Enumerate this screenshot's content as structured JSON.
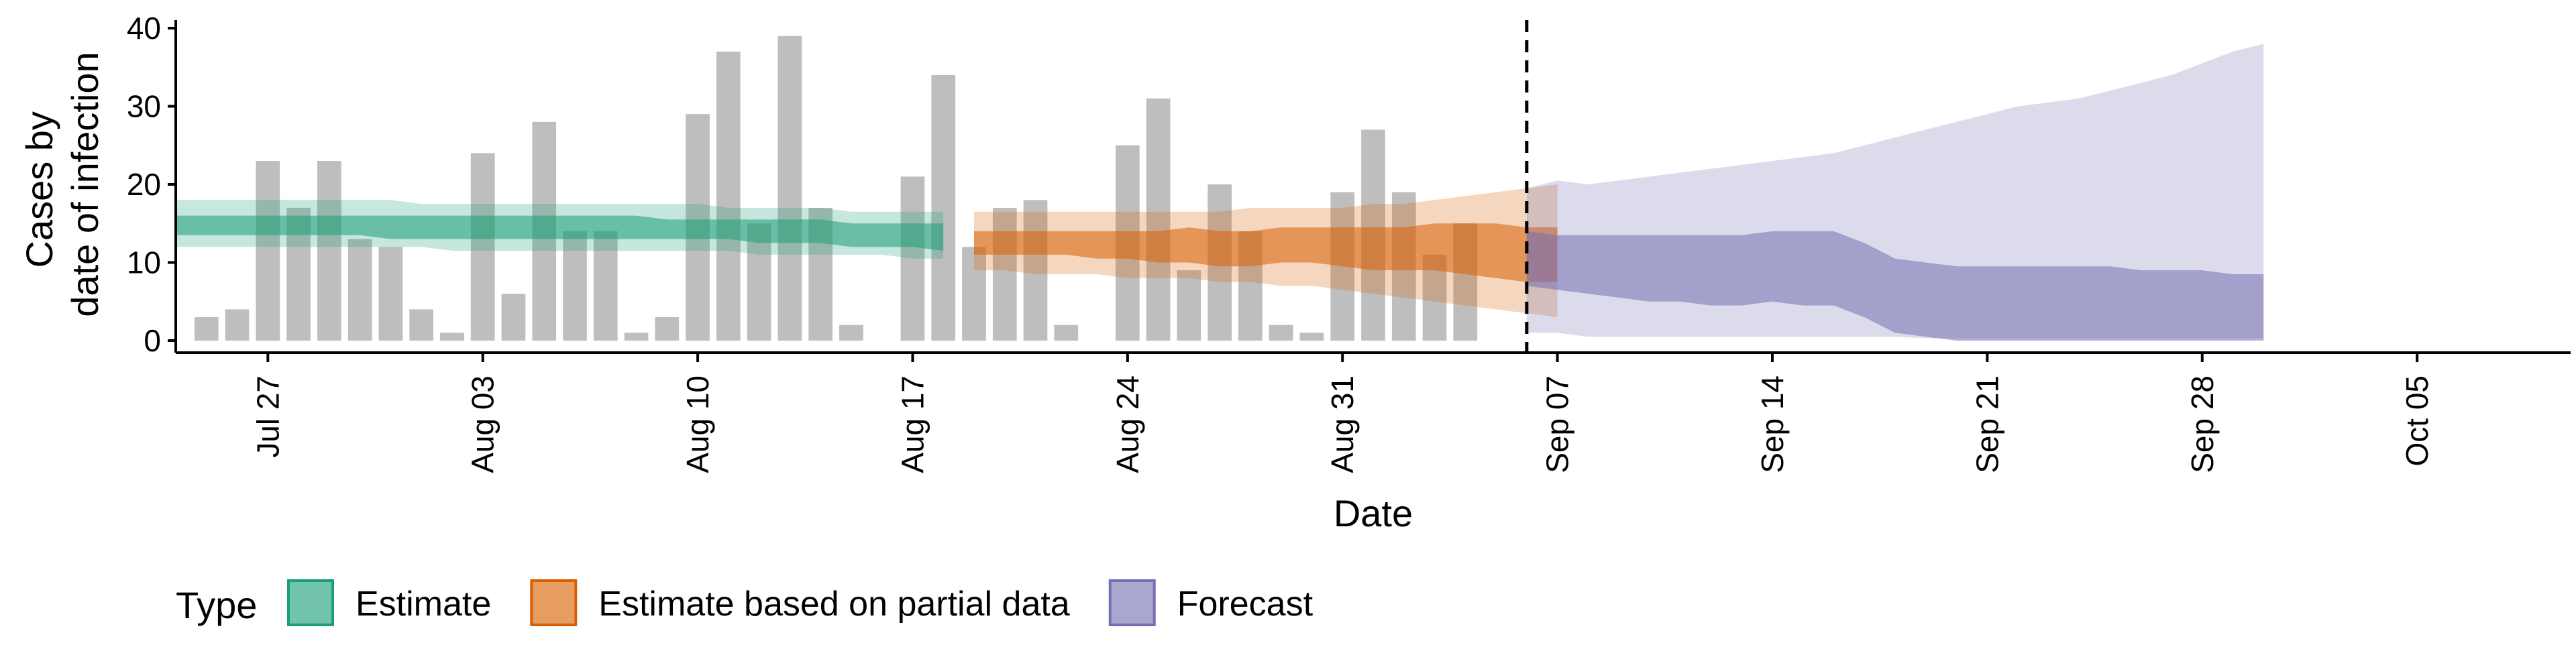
{
  "chart_data": {
    "type": "bar",
    "xlabel": "Date",
    "ylabel_lines": [
      "Cases by",
      "date of infection"
    ],
    "ylim": [
      0,
      40
    ],
    "y_ticks": [
      0,
      10,
      20,
      30,
      40
    ],
    "x_range": [
      "2021-07-24",
      "2021-10-10"
    ],
    "x_ticks": [
      {
        "date": "2021-07-27",
        "label": "Jul 27"
      },
      {
        "date": "2021-08-03",
        "label": "Aug 03"
      },
      {
        "date": "2021-08-10",
        "label": "Aug 10"
      },
      {
        "date": "2021-08-17",
        "label": "Aug 17"
      },
      {
        "date": "2021-08-24",
        "label": "Aug 24"
      },
      {
        "date": "2021-08-31",
        "label": "Aug 31"
      },
      {
        "date": "2021-09-07",
        "label": "Sep 07"
      },
      {
        "date": "2021-09-14",
        "label": "Sep 14"
      },
      {
        "date": "2021-09-21",
        "label": "Sep 21"
      },
      {
        "date": "2021-09-28",
        "label": "Sep 28"
      },
      {
        "date": "2021-10-05",
        "label": "Oct 05"
      }
    ],
    "forecast_start": "2021-09-06",
    "grid": false,
    "bars": {
      "start_date": "2021-07-25",
      "values": [
        3,
        4,
        23,
        17,
        23,
        13,
        12,
        4,
        1,
        24,
        6,
        28,
        14,
        14,
        1,
        3,
        29,
        37,
        15,
        39,
        17,
        2,
        0,
        21,
        34,
        12,
        17,
        18,
        2,
        0,
        25,
        31,
        9,
        20,
        14,
        2,
        1,
        19,
        27,
        19,
        11,
        15
      ],
      "color": "#bebebe"
    },
    "series": [
      {
        "name": "Estimate",
        "color": "#1b9e77",
        "start_date": "2021-07-24",
        "outer_band": {
          "upper": [
            18,
            18,
            18,
            18,
            18,
            18,
            18,
            18,
            17.5,
            17.5,
            17.5,
            17.5,
            17.5,
            17.5,
            17.5,
            17.5,
            17.5,
            17.5,
            17,
            17,
            17,
            17,
            16.5,
            16.5,
            16.5,
            16.5
          ],
          "lower": [
            12,
            12,
            12,
            12,
            12,
            12,
            12,
            12,
            12,
            11.5,
            11.5,
            11.5,
            11.5,
            11.5,
            11.5,
            11.5,
            11.5,
            11.5,
            11.5,
            11,
            11,
            11,
            11,
            11,
            10.5,
            10.5
          ]
        },
        "inner_band": {
          "upper": [
            16,
            16,
            16,
            16,
            16,
            16,
            16,
            16,
            16,
            16,
            16,
            16,
            16,
            16,
            16,
            16,
            15.5,
            15.5,
            15.5,
            15.5,
            15.5,
            15.5,
            15,
            15,
            15,
            15
          ],
          "lower": [
            13.5,
            13.5,
            13.5,
            13.5,
            13.5,
            13.5,
            13.5,
            13,
            13,
            13,
            13,
            13,
            13,
            13,
            13,
            13,
            13,
            13,
            13,
            12.5,
            12.5,
            12.5,
            12,
            12,
            12,
            11.5
          ]
        }
      },
      {
        "name": "Estimate based on partial data",
        "color": "#d95f02",
        "start_date": "2021-08-19",
        "outer_band": {
          "upper": [
            16.5,
            16.5,
            16.5,
            16.5,
            16.5,
            16.5,
            16.5,
            16.5,
            16.5,
            17,
            17,
            17,
            17,
            17.5,
            17.5,
            18,
            18.5,
            19,
            19.5,
            20
          ],
          "lower": [
            9,
            9,
            8.5,
            8.5,
            8.5,
            8,
            8,
            8,
            7.5,
            7.5,
            7,
            7,
            6.5,
            6,
            5.5,
            5,
            4.5,
            4,
            3.5,
            3
          ]
        },
        "inner_band": {
          "upper": [
            14,
            14,
            14,
            14,
            14,
            14,
            14,
            14.5,
            14,
            14,
            14.5,
            14.5,
            14.5,
            14.5,
            14.5,
            15,
            15,
            15,
            14.5,
            14.5
          ],
          "lower": [
            11,
            11,
            11,
            11,
            10.5,
            10.5,
            10,
            10,
            9.5,
            9.5,
            10,
            10,
            9.5,
            9,
            9,
            9,
            8.5,
            8,
            7.5,
            7.5
          ]
        }
      },
      {
        "name": "Forecast",
        "color": "#7570b3",
        "start_date": "2021-09-06",
        "outer_band": {
          "upper": [
            19.5,
            20.5,
            20,
            20.5,
            21,
            21.5,
            22,
            22.5,
            23,
            23.5,
            24,
            25,
            26,
            27,
            28,
            29,
            30,
            30.5,
            31,
            32,
            33,
            34,
            35.5,
            37,
            38
          ],
          "lower": [
            1,
            1,
            0.5,
            0.5,
            0.5,
            0.5,
            0.5,
            0.5,
            0.5,
            0.5,
            0.5,
            0.5,
            0.5,
            0.3,
            0.3,
            0.3,
            0.3,
            0.3,
            0.3,
            0.3,
            0.3,
            0.3,
            0.3,
            0.3,
            0.3
          ]
        },
        "inner_band": {
          "upper": [
            14,
            13.5,
            13.5,
            13.5,
            13.5,
            13.5,
            13.5,
            13.5,
            14,
            14,
            14,
            12.5,
            10.5,
            10,
            9.5,
            9.5,
            9.5,
            9.5,
            9.5,
            9.5,
            9,
            9,
            9,
            8.5,
            8.5
          ],
          "lower": [
            7,
            6.5,
            6,
            5.5,
            5,
            5,
            4.5,
            4.5,
            5,
            4.5,
            4.5,
            3,
            1,
            0.5,
            0,
            0,
            0,
            0,
            0,
            0,
            0,
            0,
            0,
            0,
            0
          ]
        }
      }
    ],
    "legend": {
      "title": "Type",
      "position": "bottom",
      "items": [
        {
          "label": "Estimate",
          "color": "#1b9e77"
        },
        {
          "label": "Estimate based on partial data",
          "color": "#d95f02"
        },
        {
          "label": "Forecast",
          "color": "#7570b3"
        }
      ]
    }
  }
}
